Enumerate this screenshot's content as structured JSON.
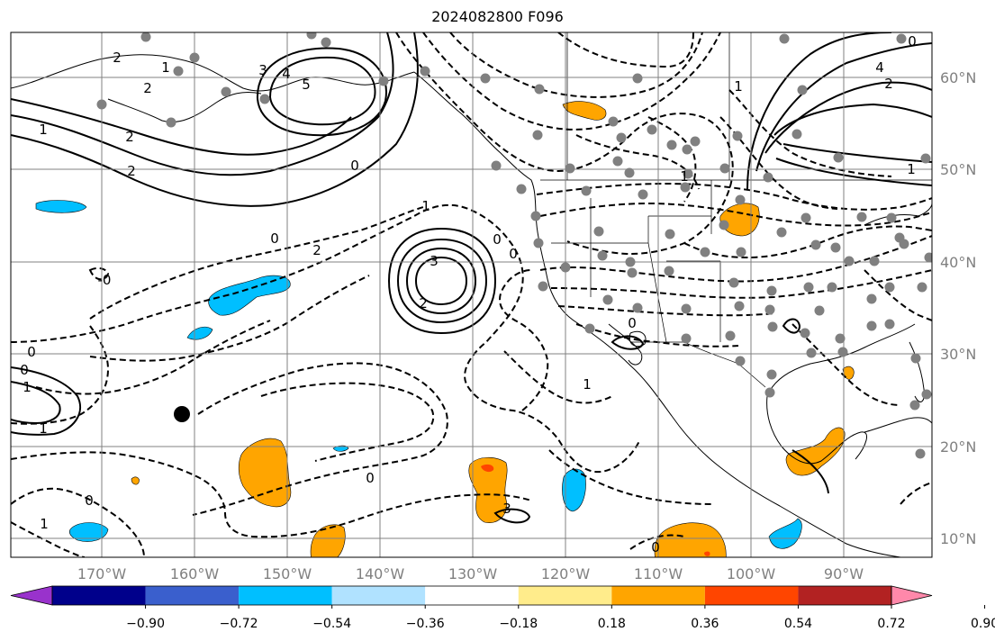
{
  "title": "2024082800 F096",
  "lon_labels": [
    "170°W",
    "160°W",
    "150°W",
    "140°W",
    "130°W",
    "120°W",
    "110°W",
    "100°W",
    "90°W"
  ],
  "lat_labels": [
    "60°N",
    "50°N",
    "40°N",
    "30°N",
    "20°N",
    "10°N"
  ],
  "colorbar": {
    "ticks": [
      "−0.90",
      "−0.72",
      "−0.54",
      "−0.36",
      "−0.18",
      "0.18",
      "0.36",
      "0.54",
      "0.72",
      "0.90"
    ],
    "colors": [
      "#9932CC",
      "#00008B",
      "#3A5FCD",
      "#00BFFF",
      "#B0E2FF",
      "#FFFFFF",
      "#FFEC8B",
      "#FFA500",
      "#FF4500",
      "#B22222",
      "#FF88AA"
    ]
  },
  "contour_labels": [
    {
      "text": "2"
    },
    {
      "text": "1"
    },
    {
      "text": "2"
    },
    {
      "text": "3"
    },
    {
      "text": "4"
    },
    {
      "text": "5"
    },
    {
      "text": "1"
    },
    {
      "text": "2"
    },
    {
      "text": "2"
    },
    {
      "text": "0"
    },
    {
      "text": "0"
    },
    {
      "text": "-0"
    },
    {
      "text": "2"
    },
    {
      "text": "1"
    },
    {
      "text": "0"
    },
    {
      "text": "3"
    },
    {
      "text": "2"
    },
    {
      "text": "0"
    },
    {
      "text": "0"
    },
    {
      "text": "1"
    },
    {
      "text": "1"
    },
    {
      "text": "0"
    },
    {
      "text": "1"
    },
    {
      "text": "0"
    },
    {
      "text": "1"
    },
    {
      "text": "0"
    },
    {
      "text": "3"
    },
    {
      "text": "4"
    },
    {
      "text": "2"
    },
    {
      "text": "1"
    },
    {
      "text": "0"
    },
    {
      "text": "1"
    },
    {
      "text": "1"
    },
    {
      "text": "0"
    },
    {
      "text": "0"
    }
  ]
}
